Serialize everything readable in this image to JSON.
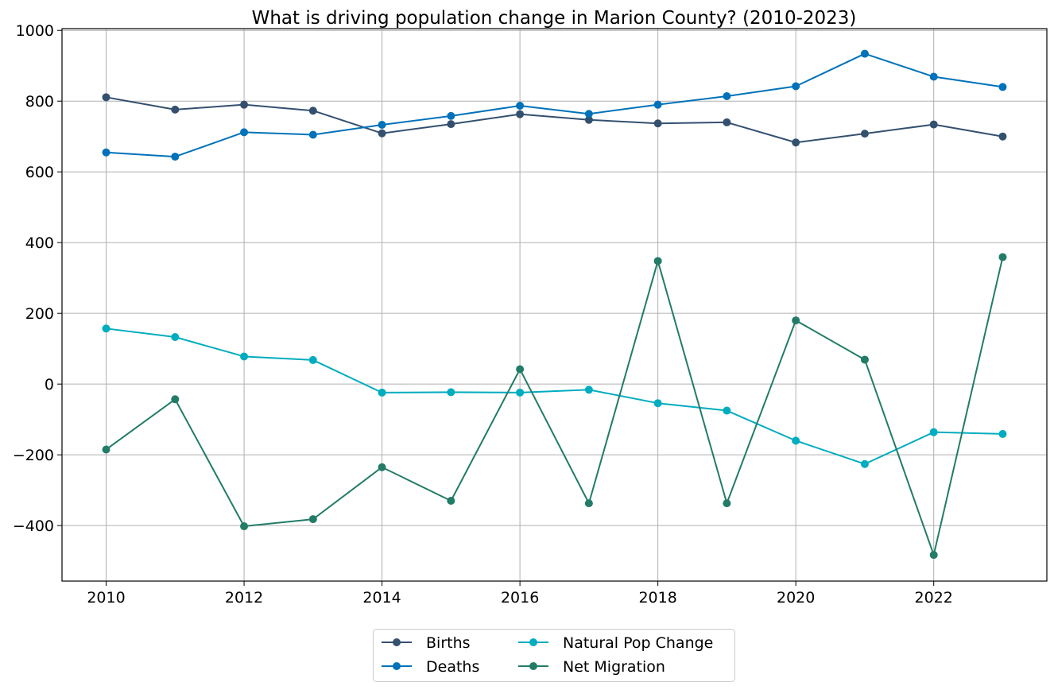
{
  "chart_data": {
    "type": "line",
    "title": "What is driving population change in Marion County? (2010-2023)",
    "xlabel": "",
    "ylabel": "",
    "x": [
      2010,
      2011,
      2012,
      2013,
      2014,
      2015,
      2016,
      2017,
      2018,
      2019,
      2020,
      2021,
      2022,
      2023
    ],
    "xlim": [
      2009.36,
      2023.64
    ],
    "ylim": [
      -557,
      1005
    ],
    "x_ticks": [
      2010,
      2012,
      2014,
      2016,
      2018,
      2020,
      2022
    ],
    "y_ticks": [
      -400,
      -200,
      0,
      200,
      400,
      600,
      800,
      1000
    ],
    "grid": true,
    "legend_position": "bottom-center",
    "series": [
      {
        "name": "Births",
        "color": "#34506f",
        "marker": "circle",
        "values": [
          811,
          776,
          790,
          773,
          709,
          735,
          763,
          747,
          737,
          740,
          683,
          708,
          734,
          700
        ]
      },
      {
        "name": "Deaths",
        "color": "#0072b9",
        "marker": "circle",
        "values": [
          655,
          643,
          712,
          705,
          733,
          758,
          787,
          764,
          790,
          814,
          842,
          934,
          869,
          840
        ]
      },
      {
        "name": "Natural Pop Change",
        "color": "#00acbf",
        "marker": "circle",
        "values": [
          157,
          133,
          78,
          68,
          -24,
          -23,
          -24,
          -16,
          -54,
          -75,
          -160,
          -226,
          -136,
          -141
        ]
      },
      {
        "name": "Net Migration",
        "color": "#227c67",
        "marker": "circle",
        "values": [
          -185,
          -43,
          -402,
          -382,
          -235,
          -330,
          42,
          -337,
          348,
          -337,
          180,
          69,
          -483,
          359
        ]
      }
    ]
  }
}
